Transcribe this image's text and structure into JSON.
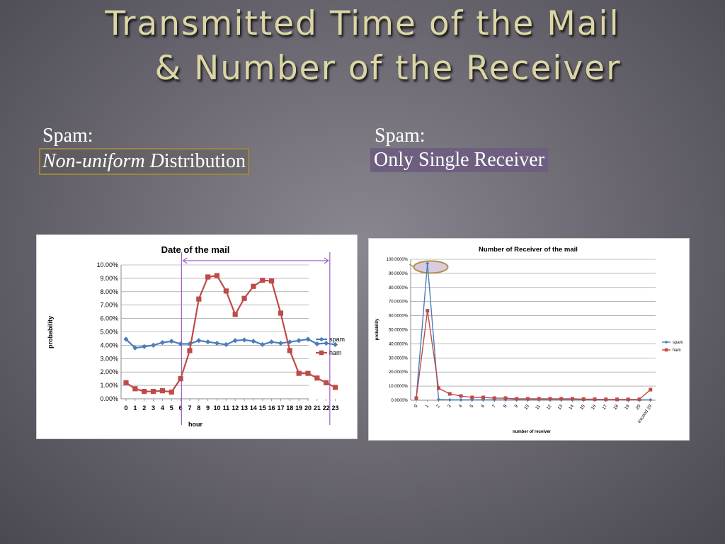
{
  "slide": {
    "title_line1": "Transmitted Time of the Mail",
    "title_line2": "& Number of the Receiver",
    "left_caption": {
      "line1": "Spam:",
      "line2_italic": "Non-uniform D",
      "line2_rest": "istribution"
    },
    "right_caption": {
      "line1": "Spam:",
      "line2": "Only Single Receiver"
    }
  },
  "colors": {
    "spam": "#4a7ebb",
    "ham": "#be4b48",
    "annotation": "#a05fc4",
    "ellipse": "#b0904a",
    "title": "#dcd6a6"
  },
  "chart_data": [
    {
      "type": "line",
      "title": "Date of the mail",
      "xlabel": "hour",
      "ylabel": "probability",
      "categories": [
        "0",
        "1",
        "2",
        "3",
        "4",
        "5",
        "6",
        "7",
        "8",
        "9",
        "10",
        "11",
        "12",
        "13",
        "14",
        "15",
        "16",
        "17",
        "18",
        "19",
        "20",
        "21",
        "22",
        "23"
      ],
      "ylim": [
        0,
        10
      ],
      "yticks": [
        "0.00%",
        "1.00%",
        "2.00%",
        "3.00%",
        "4.00%",
        "5.00%",
        "6.00%",
        "7.00%",
        "8.00%",
        "9.00%",
        "10.00%"
      ],
      "grid": true,
      "legend": "right",
      "series": [
        {
          "name": "spam",
          "values": [
            4.45,
            3.8,
            3.9,
            4.0,
            4.2,
            4.3,
            4.1,
            4.1,
            4.35,
            4.25,
            4.15,
            4.05,
            4.35,
            4.4,
            4.3,
            4.05,
            4.25,
            4.15,
            4.25,
            4.35,
            4.45,
            4.1,
            4.15,
            4.05
          ]
        },
        {
          "name": "ham",
          "values": [
            1.2,
            0.75,
            0.55,
            0.55,
            0.6,
            0.5,
            1.5,
            3.6,
            7.45,
            9.1,
            9.2,
            8.05,
            6.3,
            7.5,
            8.4,
            8.85,
            8.8,
            6.4,
            3.6,
            1.9,
            1.9,
            1.55,
            1.2,
            0.85
          ]
        }
      ]
    },
    {
      "type": "line",
      "title": "Number of Receiver of the mail",
      "xlabel": "number of receiver",
      "ylabel": "probability",
      "categories": [
        "0",
        "1",
        "2",
        "3",
        "4",
        "5",
        "6",
        "7",
        "8",
        "9",
        "10",
        "11",
        "12",
        "13",
        "14",
        "15",
        "16",
        "17",
        "18",
        "19",
        "20",
        "exceed 20"
      ],
      "ylim": [
        0,
        100
      ],
      "yticks": [
        "0.0000%",
        "10.0000%",
        "20.0000%",
        "30.0000%",
        "40.0000%",
        "50.0000%",
        "60.0000%",
        "70.0000%",
        "80.0000%",
        "90.0000%",
        "100.0000%"
      ],
      "grid": true,
      "legend": "right",
      "series": [
        {
          "name": "spam",
          "values": [
            2,
            97,
            0.5,
            0.3,
            0.3,
            0.3,
            0.3,
            0.3,
            0.3,
            0.3,
            0.3,
            0.3,
            0.3,
            0.3,
            0.3,
            0.3,
            0.3,
            0.3,
            0.3,
            0.3,
            0.3,
            0.3
          ]
        },
        {
          "name": "ham",
          "values": [
            1.5,
            63.5,
            8.5,
            4.5,
            3,
            2,
            2,
            1.5,
            1.5,
            1,
            1,
            1,
            1,
            1,
            1,
            0.8,
            0.7,
            0.6,
            0.6,
            0.6,
            0.6,
            7.5
          ]
        }
      ]
    }
  ]
}
